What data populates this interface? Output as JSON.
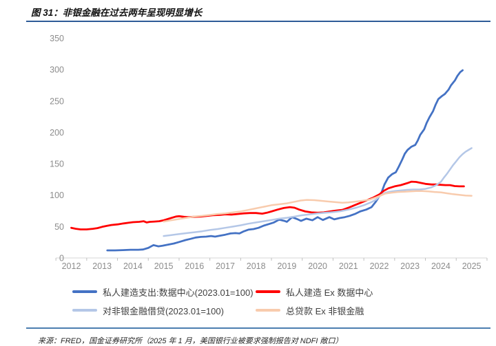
{
  "page": {
    "title": "图 31：非银金融在过去两年呈现明显增长",
    "source": "来源：FRED，国金证券研究所（2025 年 1 月，美国银行业被要求强制报告对 NDFI 敞口）"
  },
  "colors": {
    "top_rule": "#2E5B97",
    "bottom_rule": "#4B7DAF",
    "axis_line": "#D6D6D6",
    "tick_mark": "#BFBFBF",
    "axis_label": "#8C8C8C",
    "legend_text": "#3f3f3f"
  },
  "chart_data": {
    "type": "line",
    "title": "非银金融在过去两年呈现明显增长",
    "xlabel": "",
    "ylabel": "",
    "grid": false,
    "legend_position": "bottom",
    "xlim": [
      2012,
      2026
    ],
    "ylim": [
      0,
      350
    ],
    "x_tick_labels": [
      "2012",
      "2013",
      "2014",
      "2015",
      "2016",
      "2017",
      "2018",
      "2019",
      "2020",
      "2021",
      "2022",
      "2023",
      "2024",
      "2025"
    ],
    "y_tick_labels": [
      "0",
      "50",
      "100",
      "150",
      "200",
      "250",
      "300",
      "350"
    ],
    "y_ticks": [
      0,
      50,
      100,
      150,
      200,
      250,
      300,
      350
    ],
    "series": [
      {
        "name": "私人建造支出:数据中心(2023.01=100)",
        "color": "#4472C4",
        "width": 2.8,
        "points": [
          [
            2013.17,
            12
          ],
          [
            2013.42,
            12
          ],
          [
            2013.67,
            12.5
          ],
          [
            2013.92,
            13
          ],
          [
            2014.17,
            13
          ],
          [
            2014.33,
            13.5
          ],
          [
            2014.5,
            16
          ],
          [
            2014.67,
            20.5
          ],
          [
            2014.83,
            18.5
          ],
          [
            2014.96,
            19.5
          ],
          [
            2015.13,
            21
          ],
          [
            2015.33,
            23
          ],
          [
            2015.54,
            26
          ],
          [
            2015.71,
            28.5
          ],
          [
            2015.88,
            30.5
          ],
          [
            2016.04,
            32.5
          ],
          [
            2016.21,
            33.5
          ],
          [
            2016.38,
            34
          ],
          [
            2016.54,
            35
          ],
          [
            2016.67,
            34
          ],
          [
            2016.83,
            35.5
          ],
          [
            2017.0,
            37
          ],
          [
            2017.17,
            39
          ],
          [
            2017.33,
            39.5
          ],
          [
            2017.46,
            39
          ],
          [
            2017.58,
            42
          ],
          [
            2017.75,
            45
          ],
          [
            2017.92,
            46
          ],
          [
            2018.08,
            48
          ],
          [
            2018.25,
            51.5
          ],
          [
            2018.42,
            54
          ],
          [
            2018.58,
            56.5
          ],
          [
            2018.75,
            61
          ],
          [
            2018.92,
            59
          ],
          [
            2019.0,
            57.5
          ],
          [
            2019.17,
            65
          ],
          [
            2019.33,
            62
          ],
          [
            2019.46,
            59
          ],
          [
            2019.63,
            62.5
          ],
          [
            2019.83,
            60
          ],
          [
            2020.0,
            65
          ],
          [
            2020.17,
            60.5
          ],
          [
            2020.38,
            65
          ],
          [
            2020.54,
            61.5
          ],
          [
            2020.71,
            63.5
          ],
          [
            2020.88,
            65
          ],
          [
            2021.04,
            67
          ],
          [
            2021.21,
            70
          ],
          [
            2021.38,
            74
          ],
          [
            2021.58,
            77
          ],
          [
            2021.75,
            81
          ],
          [
            2021.88,
            89
          ],
          [
            2021.96,
            95
          ],
          [
            2022.08,
            105
          ],
          [
            2022.17,
            117
          ],
          [
            2022.29,
            128
          ],
          [
            2022.42,
            133.5
          ],
          [
            2022.54,
            136.5
          ],
          [
            2022.63,
            145
          ],
          [
            2022.75,
            157
          ],
          [
            2022.83,
            166
          ],
          [
            2022.92,
            172
          ],
          [
            2023.04,
            177
          ],
          [
            2023.17,
            180
          ],
          [
            2023.25,
            187
          ],
          [
            2023.33,
            196
          ],
          [
            2023.46,
            205
          ],
          [
            2023.54,
            215
          ],
          [
            2023.63,
            224
          ],
          [
            2023.75,
            234
          ],
          [
            2023.83,
            244
          ],
          [
            2023.92,
            253
          ],
          [
            2024.04,
            258
          ],
          [
            2024.13,
            261
          ],
          [
            2024.25,
            268
          ],
          [
            2024.33,
            275
          ],
          [
            2024.46,
            283
          ],
          [
            2024.54,
            290
          ],
          [
            2024.63,
            296
          ],
          [
            2024.71,
            299
          ]
        ]
      },
      {
        "name": "私人建造 Ex 数据中心",
        "color": "#FF0000",
        "width": 2.8,
        "points": [
          [
            2012.0,
            48
          ],
          [
            2012.15,
            46.5
          ],
          [
            2012.3,
            45.5
          ],
          [
            2012.5,
            45.5
          ],
          [
            2012.7,
            46.5
          ],
          [
            2012.85,
            47.5
          ],
          [
            2013.0,
            49.5
          ],
          [
            2013.15,
            51
          ],
          [
            2013.3,
            52.5
          ],
          [
            2013.5,
            53.5
          ],
          [
            2013.7,
            55
          ],
          [
            2013.85,
            56
          ],
          [
            2014.0,
            57
          ],
          [
            2014.2,
            57.5
          ],
          [
            2014.35,
            58.5
          ],
          [
            2014.45,
            56.5
          ],
          [
            2014.55,
            57.5
          ],
          [
            2014.7,
            58
          ],
          [
            2014.85,
            58.5
          ],
          [
            2015.0,
            60
          ],
          [
            2015.2,
            63
          ],
          [
            2015.4,
            66
          ],
          [
            2015.5,
            66.5
          ],
          [
            2015.65,
            65.5
          ],
          [
            2015.8,
            65
          ],
          [
            2016.0,
            65.5
          ],
          [
            2016.2,
            66
          ],
          [
            2016.4,
            67
          ],
          [
            2016.6,
            68
          ],
          [
            2016.8,
            68.5
          ],
          [
            2017.0,
            69.5
          ],
          [
            2017.2,
            69
          ],
          [
            2017.4,
            70
          ],
          [
            2017.6,
            71
          ],
          [
            2017.8,
            71.5
          ],
          [
            2018.0,
            71.5
          ],
          [
            2018.2,
            70.5
          ],
          [
            2018.35,
            72
          ],
          [
            2018.5,
            74
          ],
          [
            2018.7,
            77
          ],
          [
            2018.9,
            79.5
          ],
          [
            2019.1,
            81
          ],
          [
            2019.25,
            80
          ],
          [
            2019.4,
            77
          ],
          [
            2019.6,
            74
          ],
          [
            2019.8,
            72.5
          ],
          [
            2020.0,
            72
          ],
          [
            2020.2,
            72.5
          ],
          [
            2020.4,
            74
          ],
          [
            2020.6,
            75.5
          ],
          [
            2020.8,
            76.5
          ],
          [
            2021.0,
            80
          ],
          [
            2021.2,
            84
          ],
          [
            2021.4,
            88
          ],
          [
            2021.6,
            92
          ],
          [
            2021.8,
            96
          ],
          [
            2022.0,
            101
          ],
          [
            2022.15,
            107
          ],
          [
            2022.3,
            111
          ],
          [
            2022.5,
            114
          ],
          [
            2022.7,
            116
          ],
          [
            2022.9,
            119
          ],
          [
            2023.05,
            121.5
          ],
          [
            2023.2,
            121
          ],
          [
            2023.35,
            119.5
          ],
          [
            2023.5,
            118
          ],
          [
            2023.7,
            117
          ],
          [
            2023.85,
            117
          ],
          [
            2024.0,
            116.5
          ],
          [
            2024.15,
            116
          ],
          [
            2024.3,
            116
          ],
          [
            2024.45,
            114.5
          ],
          [
            2024.6,
            114
          ],
          [
            2024.75,
            114
          ]
        ]
      },
      {
        "name": "对非银金融借贷(2023.01=100)",
        "color": "#B4C7E7",
        "width": 2.5,
        "points": [
          [
            2015.0,
            35
          ],
          [
            2015.25,
            36.5
          ],
          [
            2015.5,
            38
          ],
          [
            2015.75,
            39.5
          ],
          [
            2016.0,
            41
          ],
          [
            2016.25,
            42.5
          ],
          [
            2016.5,
            44.5
          ],
          [
            2016.75,
            46
          ],
          [
            2017.0,
            48
          ],
          [
            2017.25,
            50
          ],
          [
            2017.5,
            52
          ],
          [
            2017.75,
            54.5
          ],
          [
            2018.0,
            56.5
          ],
          [
            2018.25,
            58.5
          ],
          [
            2018.5,
            60.5
          ],
          [
            2018.75,
            62.5
          ],
          [
            2019.0,
            64
          ],
          [
            2019.25,
            66
          ],
          [
            2019.5,
            68
          ],
          [
            2019.75,
            69.5
          ],
          [
            2020.0,
            71
          ],
          [
            2020.25,
            72
          ],
          [
            2020.5,
            73
          ],
          [
            2020.75,
            74.5
          ],
          [
            2021.0,
            77
          ],
          [
            2021.25,
            80
          ],
          [
            2021.5,
            84
          ],
          [
            2021.75,
            89
          ],
          [
            2021.9,
            93
          ],
          [
            2022.05,
            100
          ],
          [
            2022.2,
            104
          ],
          [
            2022.35,
            105.5
          ],
          [
            2022.5,
            106.5
          ],
          [
            2022.7,
            107.5
          ],
          [
            2022.9,
            108.5
          ],
          [
            2023.1,
            109
          ],
          [
            2023.3,
            109
          ],
          [
            2023.5,
            110
          ],
          [
            2023.7,
            112.5
          ],
          [
            2023.85,
            116
          ],
          [
            2024.0,
            121
          ],
          [
            2024.1,
            128
          ],
          [
            2024.2,
            134
          ],
          [
            2024.3,
            141
          ],
          [
            2024.4,
            148
          ],
          [
            2024.5,
            154
          ],
          [
            2024.6,
            160
          ],
          [
            2024.7,
            165
          ],
          [
            2024.8,
            169
          ],
          [
            2024.9,
            172
          ],
          [
            2025.0,
            175
          ]
        ]
      },
      {
        "name": "总贷款 Ex 非银金融",
        "color": "#F8CBAD",
        "width": 2.5,
        "points": [
          [
            2015.0,
            58
          ],
          [
            2015.25,
            60
          ],
          [
            2015.5,
            62
          ],
          [
            2015.75,
            64
          ],
          [
            2016.0,
            66
          ],
          [
            2016.25,
            67
          ],
          [
            2016.5,
            68.5
          ],
          [
            2016.75,
            70
          ],
          [
            2017.0,
            71
          ],
          [
            2017.25,
            72.5
          ],
          [
            2017.5,
            74
          ],
          [
            2017.75,
            76.5
          ],
          [
            2018.0,
            79
          ],
          [
            2018.25,
            81.5
          ],
          [
            2018.5,
            84
          ],
          [
            2018.75,
            85.5
          ],
          [
            2019.0,
            87
          ],
          [
            2019.2,
            89
          ],
          [
            2019.45,
            91.5
          ],
          [
            2019.65,
            92.5
          ],
          [
            2019.9,
            92
          ],
          [
            2020.1,
            91
          ],
          [
            2020.3,
            90
          ],
          [
            2020.55,
            89
          ],
          [
            2020.8,
            88
          ],
          [
            2021.0,
            88.5
          ],
          [
            2021.2,
            89.5
          ],
          [
            2021.45,
            91
          ],
          [
            2021.7,
            93
          ],
          [
            2021.9,
            96.5
          ],
          [
            2022.05,
            99.5
          ],
          [
            2022.2,
            102.5
          ],
          [
            2022.4,
            104
          ],
          [
            2022.6,
            105
          ],
          [
            2022.8,
            105.5
          ],
          [
            2023.0,
            106
          ],
          [
            2023.2,
            106.5
          ],
          [
            2023.4,
            106.5
          ],
          [
            2023.6,
            106
          ],
          [
            2023.8,
            105
          ],
          [
            2024.0,
            104.5
          ],
          [
            2024.2,
            103
          ],
          [
            2024.4,
            101.5
          ],
          [
            2024.6,
            100.5
          ],
          [
            2024.8,
            99.5
          ],
          [
            2025.0,
            99
          ]
        ]
      }
    ]
  },
  "layout_note": "figure from a research report, data source note at bottom"
}
